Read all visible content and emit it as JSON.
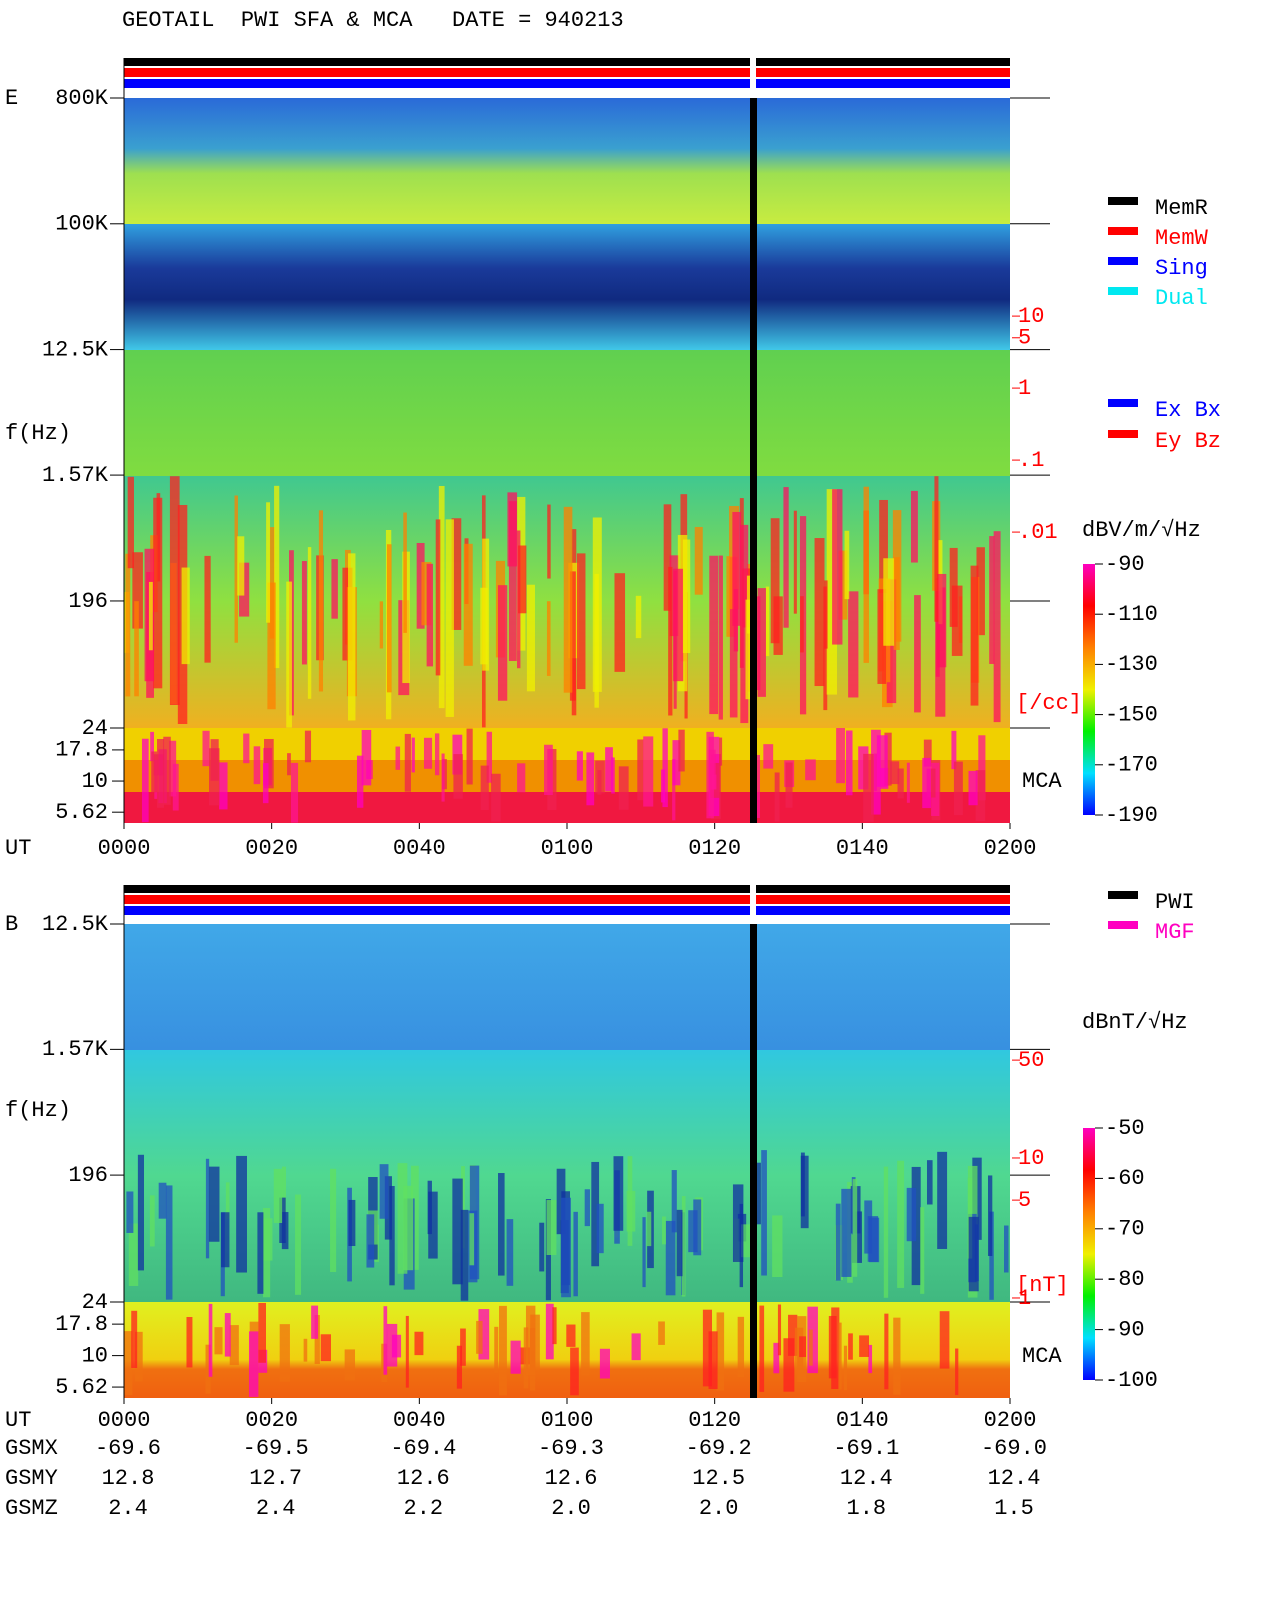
{
  "header": {
    "title": "GEOTAIL  PWI SFA & MCA   DATE = 940213"
  },
  "legends": {
    "mode": [
      {
        "name": "MemR",
        "color": "#000000"
      },
      {
        "name": "MemW",
        "color": "#ff0000"
      },
      {
        "name": "Sing",
        "color": "#0000ff"
      },
      {
        "name": "Dual",
        "color": "#00e8f0"
      }
    ],
    "component": [
      {
        "name": "Ex Bx",
        "color": "#0000ff"
      },
      {
        "name": "Ey Bz",
        "color": "#ff0000"
      }
    ],
    "source": [
      {
        "name": "PWI",
        "color": "#000000"
      },
      {
        "name": "MGF",
        "color": "#ff00c0"
      }
    ]
  },
  "chart_data": [
    {
      "type": "spectrogram",
      "panel_label": "E",
      "ylabel": "f(Hz)",
      "xlabel": "UT",
      "yscale": "log",
      "ylim": [
        24,
        800000
      ],
      "yticks": [
        {
          "value": 800000,
          "label": "800K"
        },
        {
          "value": 100000,
          "label": "100K"
        },
        {
          "value": 12500,
          "label": "12.5K"
        },
        {
          "value": 1570,
          "label": "1.57K"
        },
        196,
        24
      ],
      "mca_label": "MCA",
      "mca_ylim": [
        4.6,
        26.7
      ],
      "mca_yticks": [
        17.8,
        10,
        5.62
      ],
      "xlim": [
        0,
        120
      ],
      "xticks": [
        {
          "value": 0,
          "label": "0000"
        },
        {
          "value": 20,
          "label": "0020"
        },
        {
          "value": 40,
          "label": "0040"
        },
        {
          "value": 60,
          "label": "0100"
        },
        {
          "value": 80,
          "label": "0120"
        },
        {
          "value": 100,
          "label": "0140"
        },
        {
          "value": 120,
          "label": "0200"
        }
      ],
      "y2scale": "log",
      "y2lim": [
        1.9e-05,
        10700
      ],
      "y2ticks": [
        10,
        5,
        1,
        {
          "value": 0.1,
          "label": ".1"
        },
        {
          "value": 0.01,
          "label": ".01"
        }
      ],
      "y2_unit": "[/cc]",
      "y2_color": "#ff0000",
      "colorbar": {
        "label": "dBV/m/√Hz",
        "lim": [
          -190,
          -90
        ],
        "ticks": [
          -90,
          -110,
          -130,
          -150,
          -170,
          -190
        ],
        "colors": [
          "#0000ff",
          "#00e0ff",
          "#00f000",
          "#f0f000",
          "#ff8000",
          "#ff0000",
          "#ff00c0"
        ]
      }
    },
    {
      "type": "spectrogram",
      "panel_label": "B",
      "ylabel": "f(Hz)",
      "xlabel": "UT",
      "yscale": "log",
      "ylim": [
        24,
        12500
      ],
      "yticks": [
        {
          "value": 12500,
          "label": "12.5K"
        },
        {
          "value": 1570,
          "label": "1.57K"
        },
        196,
        24
      ],
      "mca_label": "MCA",
      "mca_ylim": [
        4.6,
        26.7
      ],
      "mca_yticks": [
        17.8,
        10,
        5.62
      ],
      "xlim": [
        0,
        120
      ],
      "xticks": [
        {
          "value": 0,
          "label": "0000"
        },
        {
          "value": 20,
          "label": "0020"
        },
        {
          "value": 40,
          "label": "0040"
        },
        {
          "value": 60,
          "label": "0100"
        },
        {
          "value": 80,
          "label": "0120"
        },
        {
          "value": 100,
          "label": "0140"
        },
        {
          "value": 120,
          "label": "0200"
        }
      ],
      "y2scale": "log",
      "y2lim": [
        0.936,
        469
      ],
      "y2ticks": [
        50,
        10,
        5,
        1
      ],
      "y2_unit": "[nT]",
      "y2_color": "#ff0000",
      "colorbar": {
        "label": "dBnT/√Hz",
        "lim": [
          -100,
          -50
        ],
        "ticks": [
          -50,
          -60,
          -70,
          -80,
          -90,
          -100
        ],
        "colors": [
          "#0000ff",
          "#00e0ff",
          "#00f000",
          "#f0f000",
          "#ff8000",
          "#ff0000",
          "#ff00c0"
        ]
      }
    }
  ],
  "orbit": {
    "rows": [
      {
        "label": "GSMX",
        "values": [
          "-69.6",
          "-69.5",
          "-69.4",
          "-69.3",
          "-69.2",
          "-69.1",
          "-69.0"
        ]
      },
      {
        "label": "GSMY",
        "values": [
          "12.8",
          "12.7",
          "12.6",
          "12.6",
          "12.5",
          "12.4",
          "12.4"
        ]
      },
      {
        "label": "GSMZ",
        "values": [
          "2.4",
          "2.4",
          "2.2",
          "2.0",
          "2.0",
          "1.8",
          "1.5"
        ]
      }
    ]
  }
}
